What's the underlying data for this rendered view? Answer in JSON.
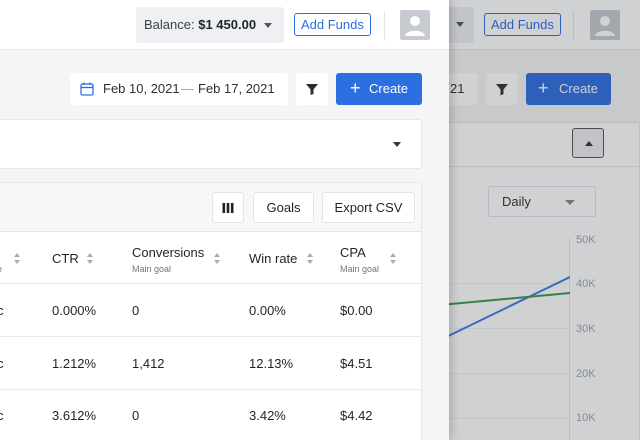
{
  "header": {
    "balance_label": "Balance:",
    "balance_value": "$1 450.00",
    "add_funds_label": "Add Funds"
  },
  "controls": {
    "date_start": "Feb 10, 2021",
    "date_sep": "—",
    "date_end": "Feb 17, 2021",
    "create_label": "Create"
  },
  "table": {
    "goals_label": "Goals",
    "export_label": "Export CSV",
    "partial_col_sub": "e",
    "columns": [
      {
        "title": "CTR",
        "sub": ""
      },
      {
        "title": "Conversions",
        "sub": "Main goal"
      },
      {
        "title": "Win rate",
        "sub": ""
      },
      {
        "title": "CPA",
        "sub": "Main goal"
      }
    ],
    "rows": [
      {
        "partial": "c",
        "ctr": "0.000%",
        "conversions": "0",
        "win_rate": "0.00%",
        "cpa": "$0.00"
      },
      {
        "partial": "c",
        "ctr": "1.212%",
        "conversions": "1,412",
        "win_rate": "12.13%",
        "cpa": "$4.51"
      },
      {
        "partial": "c",
        "ctr": "3.612%",
        "conversions": "0",
        "win_rate": "3.42%",
        "cpa": "$4.42"
      }
    ]
  },
  "background": {
    "add_funds_label": "Add Funds",
    "date_tail": "21",
    "create_label": "Create",
    "period_select": "Daily",
    "axis_ticks": [
      "50K",
      "40K",
      "30K",
      "20K",
      "10K"
    ],
    "series_colors": [
      "#3b7de8",
      "#3a9a4a"
    ]
  }
}
